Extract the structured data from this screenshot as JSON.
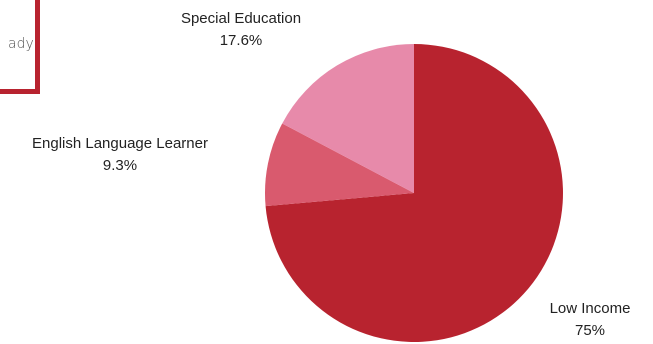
{
  "callout": {
    "text": "ady"
  },
  "colors": {
    "low_income": "#b8232f",
    "english_language_learner": "#d95a6e",
    "special_education": "#e78aaa",
    "callout_border": "#b8232f"
  },
  "chart_data": {
    "type": "pie",
    "title": "",
    "slices": [
      {
        "label": "Low Income",
        "value": 75,
        "value_label": "75%",
        "color": "#b8232f"
      },
      {
        "label": "English Language Learner",
        "value": 9.3,
        "value_label": "9.3%",
        "color": "#d95a6e"
      },
      {
        "label": "Special Education",
        "value": 17.6,
        "value_label": "17.6%",
        "color": "#e78aaa"
      }
    ],
    "start_angle": "12 o'clock",
    "direction": "clockwise",
    "legend": "none"
  }
}
